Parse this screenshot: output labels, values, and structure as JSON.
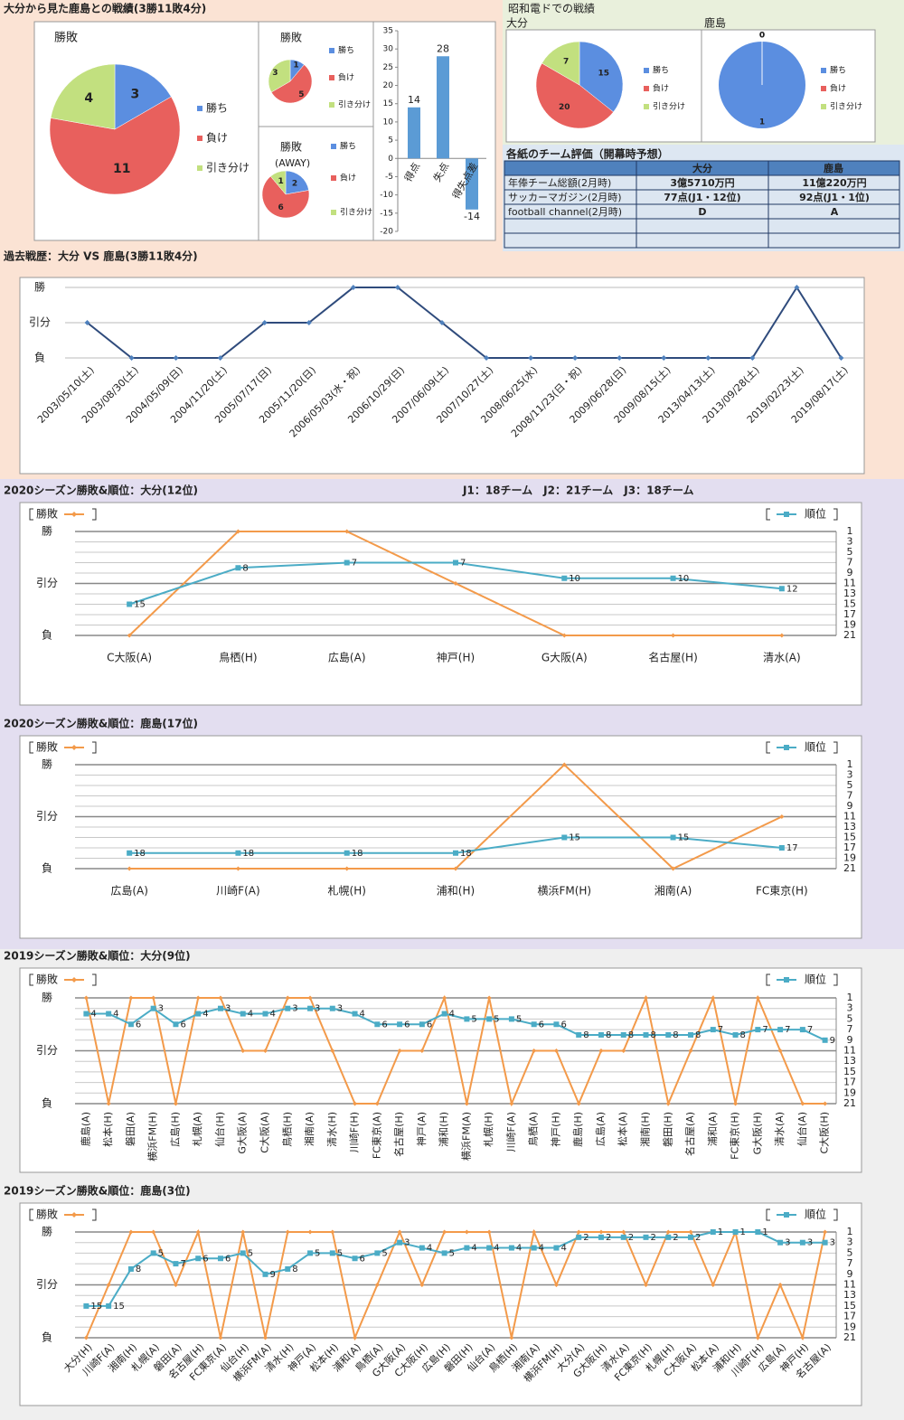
{
  "headings": {
    "title": "大分から見た鹿島との戦績(3勝11敗4分)",
    "stadium_title": "昭和電ドでの戦績",
    "league_note": "J1：18チーム　J2：21チーム　J3：18チーム"
  },
  "table": {
    "title": "各紙のチーム評価（開幕時予想）",
    "header": [
      "大分",
      "鹿島"
    ],
    "rows": [
      [
        "年俸チーム総額(2月時)",
        "3億5710万円",
        "11億220万円"
      ],
      [
        "サッカーマガジン(2月時)",
        "77点(J1・12位)",
        "92点(J1・1位)"
      ],
      [
        "football channel(2月時)",
        "D",
        "A"
      ]
    ]
  },
  "chart_data": [
    {
      "type": "pie",
      "title": "勝敗",
      "categories": [
        "勝ち",
        "負け",
        "引き分け"
      ],
      "values": [
        3,
        11,
        4
      ],
      "colors": [
        "#5b8ee0",
        "#e8605d",
        "#c2e07f"
      ]
    },
    {
      "type": "pie",
      "title": "勝敗",
      "categories": [
        "勝ち",
        "負け",
        "引き分け"
      ],
      "values": [
        1,
        5,
        3
      ],
      "colors": [
        "#5b8ee0",
        "#e8605d",
        "#c2e07f"
      ]
    },
    {
      "type": "pie",
      "title": "勝敗",
      "subtitle": "(AWAY)",
      "categories": [
        "勝ち",
        "負け",
        "引き分け"
      ],
      "values": [
        2,
        6,
        1
      ],
      "colors": [
        "#5b8ee0",
        "#e8605d",
        "#c2e07f"
      ]
    },
    {
      "type": "bar",
      "categories": [
        "得点",
        "失点",
        "得失点差"
      ],
      "values": [
        14,
        28,
        -14
      ],
      "color": "#5b9bd5",
      "ylim": [
        -20,
        35
      ],
      "yticks": [
        -20,
        -15,
        -10,
        -5,
        0,
        5,
        10,
        15,
        20,
        25,
        30,
        35
      ]
    },
    {
      "type": "pie",
      "title": "大分",
      "categories": [
        "勝ち",
        "負け",
        "引き分け"
      ],
      "values": [
        15,
        20,
        7
      ],
      "colors": [
        "#5b8ee0",
        "#e8605d",
        "#c2e07f"
      ]
    },
    {
      "type": "pie",
      "title": "鹿島",
      "categories": [
        "勝ち",
        "負け",
        "引き分け"
      ],
      "values": [
        1,
        0,
        0
      ],
      "colors": [
        "#5b8ee0",
        "#e8605d",
        "#c2e07f"
      ]
    },
    {
      "type": "line",
      "title": "過去戦歴：大分 VS 鹿島(3勝11敗4分)",
      "categories": [
        "2003/05/10(土)",
        "2003/08/30(土)",
        "2004/05/09(日)",
        "2004/11/20(土)",
        "2005/07/17(日)",
        "2005/11/20(日)",
        "2006/05/03(水・祝)",
        "2006/10/29(日)",
        "2007/06/09(土)",
        "2007/10/27(土)",
        "2008/06/25(水)",
        "2008/11/23(日・祝)",
        "2009/06/28(日)",
        "2009/08/15(土)",
        "2013/04/13(土)",
        "2013/09/28(土)",
        "2019/02/23(土)",
        "2019/08/17(土)"
      ],
      "values": [
        1,
        0,
        0,
        0,
        1,
        1,
        2,
        2,
        1,
        0,
        0,
        0,
        0,
        0,
        0,
        0,
        2,
        0
      ],
      "color": "#2f4b7c",
      "ylim": [
        0,
        2
      ],
      "yticks": [
        {
          "value": 0,
          "label": "負"
        },
        {
          "value": 1,
          "label": "引分"
        },
        {
          "value": 2,
          "label": "勝"
        }
      ],
      "grid": true
    },
    {
      "type": "combo",
      "title": "2020シーズン勝敗&順位：大分(12位)",
      "categories": [
        "C大阪(A)",
        "鳥栖(H)",
        "広島(A)",
        "神戸(H)",
        "G大阪(A)",
        "名古屋(H)",
        "清水(A)"
      ],
      "series": [
        {
          "name": "勝敗",
          "color": "#f39a4a",
          "values": [
            0,
            2,
            2,
            1,
            0,
            0,
            0
          ]
        },
        {
          "name": "順位",
          "color": "#4bacc6",
          "values": [
            15,
            8,
            7,
            7,
            10,
            10,
            12
          ],
          "axis": "y2"
        }
      ],
      "ylim": [
        0,
        2
      ],
      "yticks": [
        {
          "value": 0,
          "label": "負"
        },
        {
          "value": 1,
          "label": "引分"
        },
        {
          "value": 2,
          "label": "勝"
        }
      ],
      "y2lim": [
        21,
        1
      ],
      "y2ticks": [
        1,
        3,
        5,
        7,
        9,
        11,
        13,
        15,
        17,
        19,
        21
      ],
      "grid": true
    },
    {
      "type": "combo",
      "title": "2020シーズン勝敗&順位：鹿島(17位)",
      "categories": [
        "広島(A)",
        "川崎F(A)",
        "札幌(H)",
        "浦和(H)",
        "横浜FM(H)",
        "湘南(A)",
        "FC東京(H)"
      ],
      "series": [
        {
          "name": "勝敗",
          "color": "#f39a4a",
          "values": [
            0,
            0,
            0,
            0,
            2,
            0,
            1
          ]
        },
        {
          "name": "順位",
          "color": "#4bacc6",
          "values": [
            18,
            18,
            18,
            18,
            15,
            15,
            17
          ],
          "axis": "y2"
        }
      ],
      "ylim": [
        0,
        2
      ],
      "yticks": [
        {
          "value": 0,
          "label": "負"
        },
        {
          "value": 1,
          "label": "引分"
        },
        {
          "value": 2,
          "label": "勝"
        }
      ],
      "y2lim": [
        21,
        1
      ],
      "y2ticks": [
        1,
        3,
        5,
        7,
        9,
        11,
        13,
        15,
        17,
        19,
        21
      ],
      "grid": true
    },
    {
      "type": "combo",
      "title": "2019シーズン勝敗&順位：大分(9位)",
      "categories": [
        "鹿島(A)",
        "松本(H)",
        "磐田(A)",
        "横浜FM(H)",
        "広島(H)",
        "札幌(A)",
        "仙台(H)",
        "G大阪(A)",
        "C大阪(A)",
        "鳥栖(H)",
        "湘南(A)",
        "清水(H)",
        "川崎F(H)",
        "FC東京(A)",
        "名古屋(H)",
        "神戸(A)",
        "浦和(H)",
        "横浜FM(A)",
        "札幌(H)",
        "川崎F(A)",
        "鳥栖(A)",
        "神戸(H)",
        "鹿島(H)",
        "広島(A)",
        "松本(A)",
        "湘南(H)",
        "磐田(H)",
        "名古屋(A)",
        "浦和(A)",
        "FC東京(H)",
        "G大阪(H)",
        "清水(A)",
        "仙台(A)",
        "C大阪(H)"
      ],
      "series": [
        {
          "name": "勝敗",
          "color": "#f39a4a",
          "values": [
            2,
            0,
            2,
            2,
            0,
            2,
            2,
            1,
            1,
            2,
            2,
            1,
            0,
            0,
            1,
            1,
            2,
            0,
            2,
            0,
            1,
            1,
            0,
            1,
            1,
            2,
            0,
            1,
            2,
            0,
            2,
            1,
            0,
            0
          ]
        },
        {
          "name": "順位",
          "color": "#4bacc6",
          "values": [
            4,
            4,
            6,
            3,
            6,
            4,
            3,
            4,
            4,
            3,
            3,
            3,
            4,
            6,
            6,
            6,
            4,
            5,
            5,
            5,
            6,
            6,
            8,
            8,
            8,
            8,
            8,
            8,
            7,
            8,
            7,
            7,
            7,
            9
          ],
          "axis": "y2"
        }
      ],
      "ylim": [
        0,
        2
      ],
      "yticks": [
        {
          "value": 0,
          "label": "負"
        },
        {
          "value": 1,
          "label": "引分"
        },
        {
          "value": 2,
          "label": "勝"
        }
      ],
      "y2lim": [
        21,
        1
      ],
      "y2ticks": [
        1,
        3,
        5,
        7,
        9,
        11,
        13,
        15,
        17,
        19,
        21
      ],
      "grid": true
    },
    {
      "type": "combo",
      "title": "2019シーズン勝敗&順位：鹿島(3位)",
      "categories": [
        "大分(H)",
        "川崎F(A)",
        "湘南(H)",
        "札幌(A)",
        "磐田(A)",
        "名古屋(H)",
        "FC東京(A)",
        "仙台(H)",
        "横浜FM(A)",
        "清水(H)",
        "神戸(A)",
        "松本(H)",
        "浦和(A)",
        "鳥栖(A)",
        "G大阪(A)",
        "C大阪(H)",
        "広島(H)",
        "磐田(H)",
        "仙台(A)",
        "鳥栖(H)",
        "湘南(A)",
        "横浜FM(H)",
        "大分(A)",
        "G大阪(H)",
        "清水(A)",
        "FC東京(H)",
        "札幌(H)",
        "C大阪(A)",
        "松本(A)",
        "浦和(H)",
        "川崎F(H)",
        "広島(A)",
        "神戸(H)",
        "名古屋(A)"
      ],
      "series": [
        {
          "name": "勝敗",
          "color": "#f39a4a",
          "values": [
            0,
            1,
            2,
            2,
            1,
            2,
            0,
            2,
            0,
            2,
            2,
            2,
            0,
            1,
            2,
            1,
            2,
            2,
            2,
            0,
            2,
            1,
            2,
            2,
            2,
            1,
            2,
            2,
            1,
            2,
            0,
            1,
            0,
            2
          ]
        },
        {
          "name": "順位",
          "color": "#4bacc6",
          "values": [
            15,
            15,
            8,
            5,
            7,
            6,
            6,
            5,
            9,
            8,
            5,
            5,
            6,
            5,
            3,
            4,
            5,
            4,
            4,
            4,
            4,
            4,
            2,
            2,
            2,
            2,
            2,
            2,
            1,
            1,
            1,
            3,
            3,
            3
          ],
          "axis": "y2"
        }
      ],
      "ylim": [
        0,
        2
      ],
      "yticks": [
        {
          "value": 0,
          "label": "負"
        },
        {
          "value": 1,
          "label": "引分"
        },
        {
          "value": 2,
          "label": "勝"
        }
      ],
      "y2lim": [
        21,
        1
      ],
      "y2ticks": [
        1,
        3,
        5,
        7,
        9,
        11,
        13,
        15,
        17,
        19,
        21
      ],
      "grid": true
    }
  ]
}
